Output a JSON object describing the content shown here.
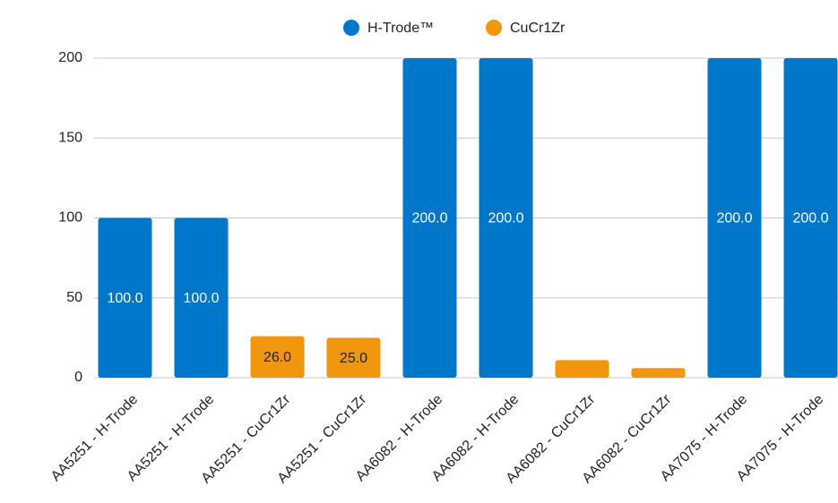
{
  "chart_data": {
    "type": "bar",
    "categories": [
      "AA5251 - H-Trode",
      "AA5251 - H-Trode",
      "AA5251 - CuCr1Zr",
      "AA5251 - CuCr1Zr",
      "AA6082 - H-Trode",
      "AA6082 - H-Trode",
      "AA6082 - CuCr1Zr",
      "AA6082 - CuCr1Zr",
      "AA7075 - H-Trode",
      "AA7075 - H-Trode"
    ],
    "series": [
      {
        "name": "H-Trode™",
        "color": "#0077c8",
        "label_color": "#ffffff",
        "values": [
          100,
          100,
          null,
          null,
          200,
          200,
          null,
          null,
          200,
          200
        ],
        "value_labels": [
          "100.0",
          "100.0",
          null,
          null,
          "200.0",
          "200.0",
          null,
          null,
          "200.0",
          "200.0"
        ]
      },
      {
        "name": "CuCr1Zr",
        "color": "#f0960f",
        "label_color": "#222222",
        "values": [
          null,
          null,
          26,
          25,
          null,
          null,
          11,
          6,
          null,
          null
        ],
        "value_labels": [
          null,
          null,
          "26.0",
          "25.0",
          null,
          null,
          null,
          null,
          null,
          null
        ]
      }
    ],
    "ylim": [
      0,
      200
    ],
    "yticks": [
      0,
      50,
      100,
      150,
      200
    ],
    "grid": true,
    "legend": "top"
  }
}
